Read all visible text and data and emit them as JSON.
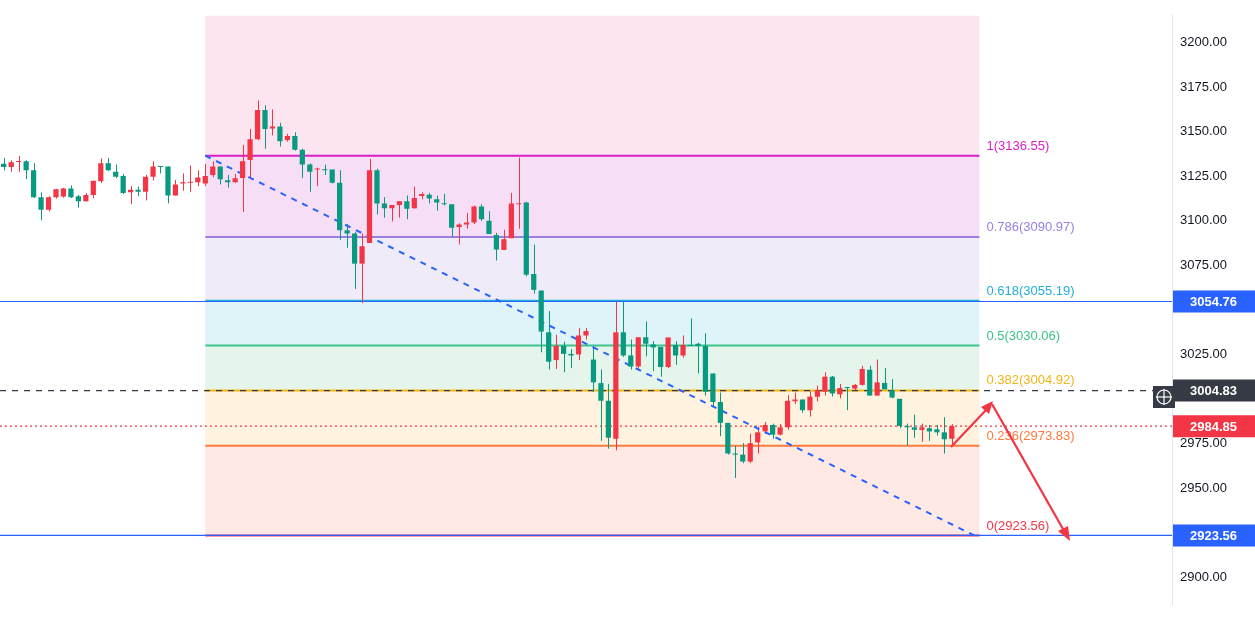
{
  "chart_data": {
    "type": "candlestick",
    "categories": [
      null,
      null,
      null,
      null,
      null,
      null,
      null,
      null,
      null,
      null,
      null,
      null,
      null,
      null,
      null,
      null,
      null,
      null,
      null,
      null,
      null,
      null,
      null,
      null,
      null,
      null,
      null,
      null,
      null,
      null,
      null,
      null,
      null,
      null,
      null,
      null,
      null,
      null,
      null,
      null,
      null,
      null,
      null,
      null,
      null,
      null,
      null,
      null,
      null,
      null,
      null,
      null,
      null,
      null,
      null,
      null,
      null,
      null,
      null,
      null,
      null,
      null,
      null,
      null,
      null,
      null,
      null,
      null,
      null,
      null,
      null,
      null,
      null,
      null,
      null,
      null,
      null,
      null,
      null,
      null,
      null,
      null,
      null,
      null,
      null,
      null,
      null,
      null,
      null,
      null,
      null,
      null,
      null,
      null,
      null,
      null,
      null,
      null,
      null,
      null,
      null,
      null,
      null,
      null,
      null,
      null,
      null,
      null,
      null,
      null,
      null,
      null,
      null,
      null,
      null,
      null,
      null,
      null,
      null,
      null,
      null,
      null,
      null,
      null,
      null,
      null,
      null,
      null,
      null,
      null,
      null,
      null,
      null,
      null,
      null,
      null,
      null,
      null,
      null,
      null,
      null,
      null,
      null,
      null,
      null,
      null,
      null,
      null,
      null,
      null,
      null,
      null,
      null,
      null,
      null,
      null,
      null
    ],
    "ohlc": [
      [
        3132,
        3135.2,
        3128.4,
        3130.2
      ],
      [
        3130.2,
        3134,
        3127.5,
        3132.8
      ],
      [
        3133,
        3136.4,
        3127.5,
        3133.3
      ],
      [
        3133.4,
        3134,
        3123.4,
        3128.4
      ],
      [
        3128.4,
        3132.3,
        3112.8,
        3113.3
      ],
      [
        3113.3,
        3116,
        3100.3,
        3106.2
      ],
      [
        3106.2,
        3113.8,
        3105.3,
        3113.3
      ],
      [
        3113.3,
        3118,
        3112.5,
        3117.7
      ],
      [
        3113.6,
        3118.5,
        3113,
        3118.1
      ],
      [
        3118.1,
        3119.9,
        3112.8,
        3113.3
      ],
      [
        3113.8,
        3114.5,
        3107.4,
        3111
      ],
      [
        3111,
        3115.6,
        3110.8,
        3114.5
      ],
      [
        3114.5,
        3122.5,
        3112.8,
        3122.5
      ],
      [
        3122.2,
        3135,
        3121.3,
        3132.3
      ],
      [
        3132.3,
        3135.2,
        3128,
        3128.4
      ],
      [
        3127.5,
        3131.6,
        3124,
        3124.8
      ],
      [
        3125.2,
        3126.3,
        3115.1,
        3115.6
      ],
      [
        3116,
        3119.5,
        3109.4,
        3117.4
      ],
      [
        3117.4,
        3119.2,
        3113.8,
        3116.3
      ],
      [
        3116.3,
        3125.7,
        3111.5,
        3124.8
      ],
      [
        3124.8,
        3133.4,
        3122.7,
        3130.5
      ],
      [
        3130.5,
        3130.5,
        3126.6,
        3130.2
      ],
      [
        3130.5,
        3130.5,
        3109.8,
        3114.2
      ],
      [
        3114.2,
        3123,
        3114.2,
        3120.4
      ],
      [
        3121,
        3126.6,
        3116.9,
        3121.7
      ],
      [
        3121.3,
        3131,
        3116.3,
        3121.7
      ],
      [
        3121.7,
        3128.4,
        3119.5,
        3124.3
      ],
      [
        3121,
        3132,
        3119.5,
        3125.2
      ],
      [
        3125.7,
        3133.4,
        3124.5,
        3130.5
      ],
      [
        3130.5,
        3130.5,
        3120.4,
        3123.4
      ],
      [
        3122.7,
        3125.7,
        3118.6,
        3121.7
      ],
      [
        3121.7,
        3126.3,
        3121.3,
        3123.9
      ],
      [
        3124,
        3142.6,
        3105,
        3133.4
      ],
      [
        3134.1,
        3151.5,
        3124.5,
        3145.8
      ],
      [
        3145.8,
        3167.5,
        3145.3,
        3162.1
      ],
      [
        3162.1,
        3164.8,
        3140.5,
        3151.5
      ],
      [
        3151.8,
        3162.5,
        3147.9,
        3152.9
      ],
      [
        3152.9,
        3155,
        3141.7,
        3144.7
      ],
      [
        3145.3,
        3148.8,
        3144.4,
        3147.6
      ],
      [
        3147.6,
        3149.7,
        3139.4,
        3139.9
      ],
      [
        3139.9,
        3140.5,
        3124,
        3131.6
      ],
      [
        3131.6,
        3132.3,
        3116.3,
        3127.5
      ],
      [
        3128.8,
        3129.8,
        3119.5,
        3129.3
      ],
      [
        3128.8,
        3131.6,
        3125.7,
        3128.4
      ],
      [
        3128.8,
        3128.8,
        3121,
        3121.3
      ],
      [
        3121.3,
        3128.4,
        3089.4,
        3094.7
      ],
      [
        3094.7,
        3098.2,
        3084.9,
        3092.9
      ],
      [
        3092.9,
        3093.8,
        3061.8,
        3076
      ],
      [
        3076,
        3092.9,
        3053.8,
        3085.8
      ],
      [
        3087.6,
        3134.7,
        3087.6,
        3128.4
      ],
      [
        3128.4,
        3129.3,
        3103.6,
        3109.8
      ],
      [
        3109.8,
        3113.3,
        3101.8,
        3107.1
      ],
      [
        3107.1,
        3108.9,
        3099.7,
        3108.9
      ],
      [
        3108.9,
        3111,
        3101.8,
        3111
      ],
      [
        3111,
        3114.2,
        3100.9,
        3106.8
      ],
      [
        3107.1,
        3119.2,
        3106.8,
        3112.8
      ],
      [
        3113.9,
        3116,
        3112.1,
        3115.1
      ],
      [
        3114.6,
        3115.7,
        3109.8,
        3112.5
      ],
      [
        3112.1,
        3114.2,
        3105.7,
        3110.3
      ],
      [
        3109.8,
        3115.1,
        3108.6,
        3109.3
      ],
      [
        3109.3,
        3109.3,
        3091.1,
        3096.1
      ],
      [
        3096.5,
        3098.6,
        3086.7,
        3097.9
      ],
      [
        3097.9,
        3104.5,
        3095.6,
        3099.1
      ],
      [
        3099.1,
        3108.6,
        3098.2,
        3108
      ],
      [
        3108,
        3109.3,
        3100,
        3100.9
      ],
      [
        3100,
        3105.3,
        3092.6,
        3092.6
      ],
      [
        3092,
        3093.3,
        3077.8,
        3084
      ],
      [
        3083.7,
        3095,
        3083.7,
        3089.7
      ],
      [
        3090.3,
        3115.7,
        3090.3,
        3109.8
      ],
      [
        3109.3,
        3135.5,
        3095.6,
        3109.8
      ],
      [
        3110.3,
        3110.7,
        3068.9,
        3069.8
      ],
      [
        3070.2,
        3086.7,
        3059.2,
        3061.3
      ],
      [
        3060.9,
        3060.9,
        3026.3,
        3037.9
      ],
      [
        3037.5,
        3049.4,
        3016.6,
        3021
      ],
      [
        3021.9,
        3036.1,
        3016.9,
        3029.9
      ],
      [
        3029.9,
        3032.2,
        3015.1,
        3025.4
      ],
      [
        3025.4,
        3028.1,
        3017.4,
        3024.5
      ],
      [
        3025.1,
        3040,
        3021.9,
        3035.7
      ],
      [
        3035.7,
        3040,
        3033.4,
        3038.2
      ],
      [
        3022.2,
        3029,
        3004.1,
        3009.4
      ],
      [
        3009,
        3016.6,
        2976.6,
        2999.1
      ],
      [
        2999.1,
        3008.6,
        2972.2,
        2978.4
      ],
      [
        2977.8,
        3054.7,
        2971.3,
        3037.5
      ],
      [
        3037.5,
        3054.7,
        3023.7,
        3024.5
      ],
      [
        3024.5,
        3033.4,
        3016.6,
        3018.3
      ],
      [
        3018.3,
        3034.7,
        3016.9,
        3034.7
      ],
      [
        3034.7,
        3043.5,
        3024,
        3031.1
      ],
      [
        3030.7,
        3032.5,
        3015.7,
        3029
      ],
      [
        3029.3,
        3029.3,
        3012.6,
        3018
      ],
      [
        3018,
        3034.6,
        3017.4,
        3034.6
      ],
      [
        3030.4,
        3032.5,
        3019.2,
        3024.5
      ],
      [
        3024.5,
        3035.7,
        3023.3,
        3030.4
      ],
      [
        3030.4,
        3045.3,
        3029.8,
        3029.8
      ],
      [
        3031.1,
        3031.6,
        3014.4,
        3029.8
      ],
      [
        3029.8,
        3037,
        3002,
        3004.1
      ],
      [
        3014.4,
        3014.4,
        2995.6,
        2998.4
      ],
      [
        2998.4,
        3003.7,
        2979.2,
        2986.7
      ],
      [
        2986.7,
        2986.7,
        2968.9,
        2969.5
      ],
      [
        2969.5,
        2973.9,
        2955.8,
        2968.9
      ],
      [
        2968.9,
        2975.3,
        2964.1,
        2965
      ],
      [
        2965,
        2980.6,
        2964.1,
        2975.3
      ],
      [
        2975.7,
        2984.6,
        2969.5,
        2981.4
      ],
      [
        2981.9,
        2987.2,
        2980.6,
        2985.5
      ],
      [
        2985.5,
        2986.3,
        2977.8,
        2980.1
      ],
      [
        2980.1,
        2986,
        2979.6,
        2984.2
      ],
      [
        2984.2,
        3002.3,
        2982.8,
        2999.1
      ],
      [
        2998.8,
        3003.7,
        2997.3,
        2999.8
      ],
      [
        2999.8,
        2999.8,
        2992.4,
        2993.8
      ],
      [
        2993.8,
        3004.4,
        2990.2,
        3001.4
      ],
      [
        3001.4,
        3007.6,
        2998.8,
        3005
      ],
      [
        3004.1,
        3015.1,
        3002,
        3012.6
      ],
      [
        3012.6,
        3013,
        3001.4,
        3003.2
      ],
      [
        3002.7,
        3008.5,
        3000.5,
        3006.2
      ],
      [
        3006.8,
        3006.8,
        2993.8,
        3006.2
      ],
      [
        3005.9,
        3008.5,
        3005,
        3008
      ],
      [
        3008,
        3018.7,
        3007.6,
        3016.9
      ],
      [
        3016.5,
        3018.7,
        3002,
        3002
      ],
      [
        3002,
        3022.2,
        3002,
        3009.4
      ],
      [
        3009.1,
        3017.4,
        3005.5,
        3005.5
      ],
      [
        3005,
        3011.2,
        3000.5,
        3000.9
      ],
      [
        3000.2,
        3000.2,
        2983.7,
        2984.9
      ],
      [
        2984.9,
        2986.3,
        2973.9,
        2984.2
      ],
      [
        2984.2,
        2991.3,
        2978.3,
        2982.8
      ],
      [
        2982.8,
        2986.3,
        2976,
        2984.2
      ],
      [
        2983.7,
        2985.5,
        2976.6,
        2981.9
      ],
      [
        2983.1,
        2985.5,
        2979.6,
        2981.4
      ],
      [
        2981.4,
        2989.9,
        2969.5,
        2977.5
      ],
      [
        2977.8,
        2986,
        2974.3,
        2984.85
      ],
      null,
      null,
      null,
      null,
      null,
      null,
      null,
      null,
      null,
      null,
      null,
      null,
      null,
      null,
      null,
      null,
      null,
      null,
      null,
      null,
      null,
      null,
      null,
      null,
      null,
      null,
      null,
      null,
      null
    ],
    "colors": [
      "#089981",
      "#f23645",
      "#f23645",
      "#089981",
      "#089981",
      "#089981",
      "#f23645",
      "#f23645",
      "#f23645",
      "#089981",
      "#089981",
      "#f23645",
      "#f23645",
      "#f23645",
      "#089981",
      "#089981",
      "#089981",
      "#f23645",
      "#089981",
      "#f23645",
      "#f23645",
      "#089981",
      "#089981",
      "#f23645",
      "#f23645",
      "#f23645",
      "#f23645",
      "#f23645",
      "#f23645",
      "#089981",
      "#089981",
      "#f23645",
      "#f23645",
      "#f23645",
      "#f23645",
      "#089981",
      "#f23645",
      "#089981",
      "#f23645",
      "#089981",
      "#089981",
      "#089981",
      "#f23645",
      "#089981",
      "#089981",
      "#089981",
      "#089981",
      "#089981",
      "#f23645",
      "#f23645",
      "#089981",
      "#089981",
      "#f23645",
      "#f23645",
      "#089981",
      "#f23645",
      "#f23645",
      "#089981",
      "#089981",
      "#089981",
      "#089981",
      "#f23645",
      "#f23645",
      "#f23645",
      "#089981",
      "#089981",
      "#089981",
      "#f23645",
      "#f23645",
      "#f23645",
      "#089981",
      "#089981",
      "#089981",
      "#089981",
      "#f23645",
      "#089981",
      "#089981",
      "#f23645",
      "#f23645",
      "#089981",
      "#089981",
      "#089981",
      "#f23645",
      "#089981",
      "#089981",
      "#f23645",
      "#089981",
      "#089981",
      "#089981",
      "#f23645",
      "#089981",
      "#f23645",
      "#089981",
      "#089981",
      "#089981",
      "#089981",
      "#089981",
      "#089981",
      "#089981",
      "#089981",
      "#f23645",
      "#f23645",
      "#f23645",
      "#089981",
      "#f23645",
      "#f23645",
      "#f23645",
      "#089981",
      "#f23645",
      "#f23645",
      "#f23645",
      "#089981",
      "#f23645",
      "#089981",
      "#f23645",
      "#f23645",
      "#089981",
      "#f23645",
      "#089981",
      "#089981",
      "#089981",
      "#089981",
      "#089981",
      "#f23645",
      "#089981",
      "#089981",
      "#089981",
      "#f23645",
      null,
      null,
      null,
      null,
      null,
      null,
      null,
      null,
      null,
      null,
      null,
      null,
      null,
      null,
      null,
      null,
      null,
      null,
      null,
      null,
      null,
      null,
      null,
      null,
      null,
      null,
      null,
      null,
      null
    ],
    "series": [
      {
        "type": "line",
        "color": "#2962ff",
        "line_style": "dashed",
        "marker": "none",
        "values": [
          null,
          null,
          null,
          null,
          null,
          null,
          null,
          null,
          null,
          null,
          null,
          null,
          null,
          null,
          null,
          null,
          null,
          null,
          null,
          null,
          null,
          null,
          null,
          null,
          null,
          null,
          null,
          3136.55,
          null,
          null,
          null,
          null,
          null,
          null,
          null,
          null,
          null,
          null,
          null,
          null,
          null,
          null,
          null,
          null,
          null,
          null,
          null,
          null,
          null,
          null,
          null,
          null,
          null,
          null,
          null,
          null,
          null,
          null,
          null,
          null,
          null,
          null,
          null,
          null,
          null,
          null,
          null,
          null,
          null,
          null,
          null,
          null,
          null,
          null,
          null,
          null,
          null,
          null,
          null,
          null,
          null,
          null,
          null,
          null,
          null,
          null,
          null,
          null,
          null,
          null,
          null,
          null,
          null,
          null,
          null,
          null,
          null,
          null,
          null,
          null,
          null,
          null,
          null,
          null,
          null,
          null,
          null,
          null,
          null,
          null,
          null,
          null,
          null,
          null,
          null,
          null,
          null,
          null,
          null,
          null,
          null,
          null,
          null,
          null,
          null,
          null,
          null,
          null,
          null,
          null,
          2923.56,
          null,
          null,
          null,
          null,
          null,
          null,
          null,
          null,
          null,
          null,
          null,
          null,
          null,
          null,
          null,
          null,
          null,
          null,
          null,
          null,
          null,
          null,
          null,
          null,
          null,
          null
        ]
      }
    ],
    "ylim": [
      2885,
      3215
    ],
    "yticks": [
      {
        "value": 2900,
        "label": "2900.00"
      },
      {
        "value": 2950,
        "label": "2950.00"
      },
      {
        "value": 2975,
        "label": "2975.00"
      },
      {
        "value": 3025,
        "label": "3025.00"
      },
      {
        "value": 3075,
        "label": "3075.00"
      },
      {
        "value": 3100,
        "label": "3100.00"
      },
      {
        "value": 3125,
        "label": "3125.00"
      },
      {
        "value": 3150,
        "label": "3150.00"
      },
      {
        "value": 3175,
        "label": "3175.00"
      },
      {
        "value": 3200,
        "label": "3200.00"
      }
    ],
    "bands": [
      {
        "axis": "y",
        "from": 3136.55,
        "to": 3215,
        "color": "#fce4f0"
      },
      {
        "axis": "y",
        "from": 3090.97,
        "to": 3136.55,
        "color": "#f6dff6"
      },
      {
        "axis": "y",
        "from": 3055.19,
        "to": 3090.97,
        "color": "#efebf8"
      },
      {
        "axis": "y",
        "from": 3030.06,
        "to": 3055.19,
        "color": "#dff4f9"
      },
      {
        "axis": "y",
        "from": 3004.92,
        "to": 3030.06,
        "color": "#e5f5ec"
      },
      {
        "axis": "y",
        "from": 2973.83,
        "to": 3004.92,
        "color": "#fff3e0"
      },
      {
        "axis": "y",
        "from": 2923.56,
        "to": 2973.83,
        "color": "#fee9e4"
      }
    ],
    "ref_lines": [
      {
        "axis": "y",
        "value": 3136.55,
        "label": "1(3136.55)",
        "color": "#d81fc4"
      },
      {
        "axis": "y",
        "value": 3090.97,
        "label": "0.786(3090.97)",
        "color": "#9b7fe0"
      },
      {
        "axis": "y",
        "value": 3055.19,
        "label": "0.618(3055.19)",
        "color": "#22b0d6"
      },
      {
        "axis": "y",
        "value": 3030.06,
        "label": "0.5(3030.06)",
        "color": "#3cc489"
      },
      {
        "axis": "y",
        "value": 3004.92,
        "label": "0.382(3004.92)",
        "color": "#f2b418"
      },
      {
        "axis": "y",
        "value": 2973.83,
        "label": "0.236(2973.83)",
        "color": "#ff7a3d"
      },
      {
        "axis": "y",
        "value": 2923.56,
        "label": "0(2923.56)",
        "color": "#f23645"
      },
      {
        "axis": "y",
        "value": 3054.76,
        "label": "3054.76",
        "color": "#2962ff",
        "line_style": "solid"
      },
      {
        "axis": "y",
        "value": 2923.56,
        "label": "2923.56",
        "color": "#2962ff",
        "line_style": "solid"
      },
      {
        "axis": "y",
        "value": 3004.83,
        "label": "3004.83",
        "color": "#363a45",
        "line_style": "dashed"
      },
      {
        "axis": "y",
        "value": 2984.85,
        "label": "2984.85",
        "color": "#f23645",
        "line_style": "dotted"
      }
    ]
  }
}
